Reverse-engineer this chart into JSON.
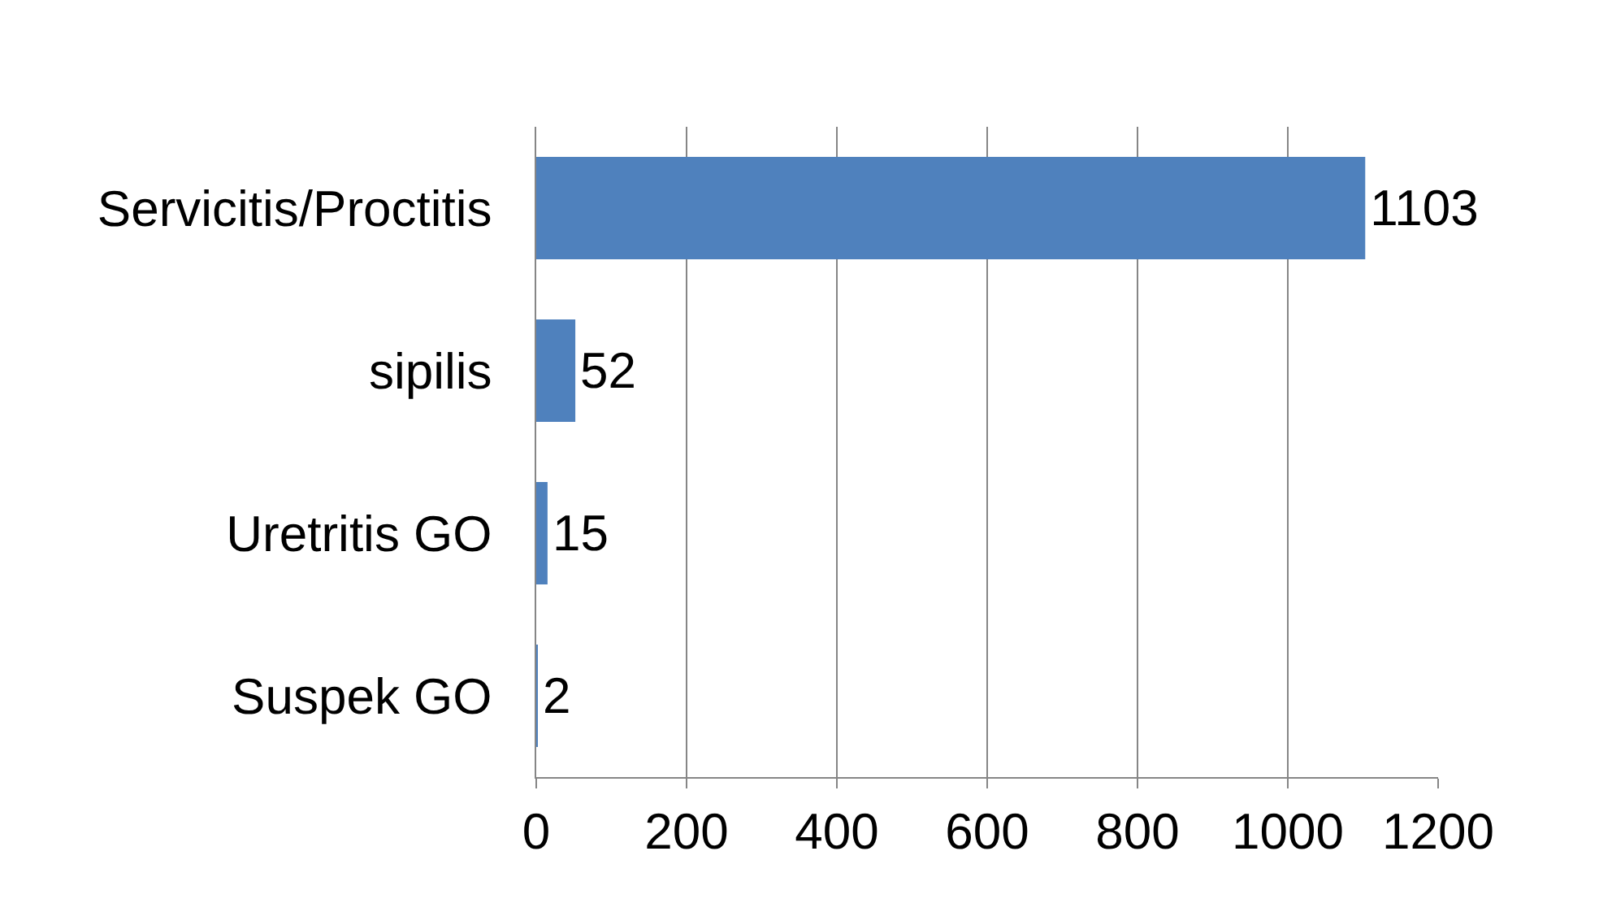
{
  "chart_data": {
    "type": "bar",
    "orientation": "horizontal",
    "categories": [
      "Servicitis/Proctitis",
      "sipilis",
      "Uretritis GO",
      "Suspek GO"
    ],
    "values": [
      1103,
      52,
      15,
      2
    ],
    "color": "#4f81bd",
    "xlim": [
      0,
      1200
    ],
    "xticks": [
      0,
      200,
      400,
      600,
      800,
      1000,
      1200
    ],
    "grid": "x",
    "data_labels": true
  }
}
